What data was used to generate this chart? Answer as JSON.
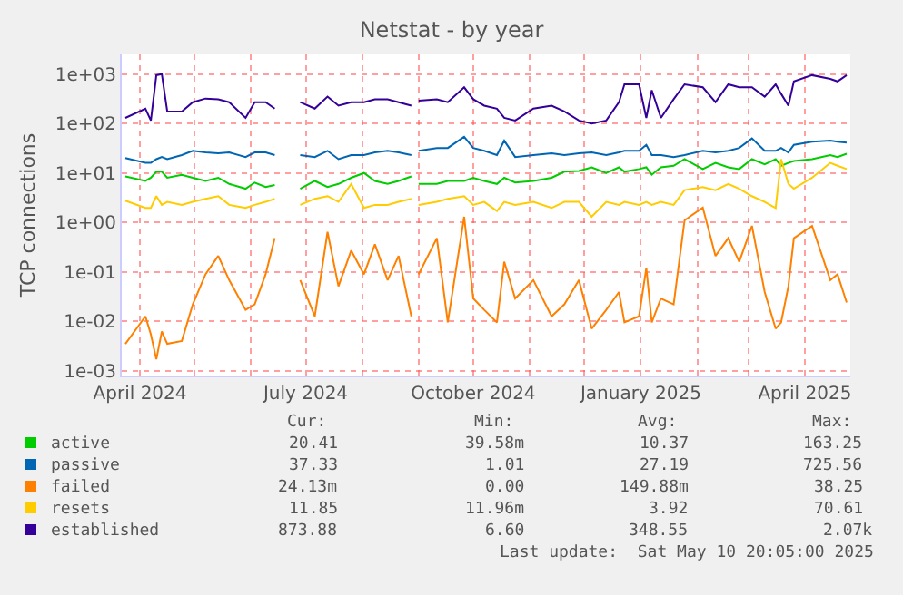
{
  "chart_data": {
    "type": "line",
    "title": "Netstat - by year",
    "ylabel": "TCP connections",
    "x": [
      "2024-03-24",
      "2024-04-04",
      "2024-04-07",
      "2024-04-10",
      "2024-04-13",
      "2024-04-16",
      "2024-04-24",
      "2024-04-30",
      "2024-05-07",
      "2024-05-14",
      "2024-05-20",
      "2024-05-29",
      "2024-06-03",
      "2024-06-09",
      "2024-06-14",
      "2024-06-19",
      "2024-06-28",
      "2024-07-06",
      "2024-07-13",
      "2024-07-19",
      "2024-07-26",
      "2024-08-02",
      "2024-08-08",
      "2024-08-15",
      "2024-08-21",
      "2024-08-28",
      "2024-08-30",
      "2024-09-01",
      "2024-09-11",
      "2024-09-17",
      "2024-09-26",
      "2024-10-01",
      "2024-10-07",
      "2024-10-14",
      "2024-10-18",
      "2024-10-24",
      "2024-11-03",
      "2024-11-13",
      "2024-11-20",
      "2024-11-28",
      "2024-12-05",
      "2024-12-13",
      "2024-12-20",
      "2024-12-23",
      "2024-12-31",
      "2025-01-04",
      "2025-01-07",
      "2025-01-12",
      "2025-01-19",
      "2025-01-25",
      "2025-02-04",
      "2025-02-11",
      "2025-02-18",
      "2025-02-24",
      "2025-03-03",
      "2025-03-10",
      "2025-03-16",
      "2025-03-19",
      "2025-03-23",
      "2025-03-26",
      "2025-04-05",
      "2025-04-15",
      "2025-04-19",
      "2025-04-24"
    ],
    "series": [
      {
        "name": "active",
        "color": "#00cc00",
        "values": [
          8.5,
          6.9,
          8.0,
          10.6,
          10.6,
          8.0,
          9.2,
          8.0,
          6.9,
          8.0,
          6.0,
          4.8,
          6.4,
          5.2,
          5.7,
          null,
          4.8,
          6.9,
          5.2,
          6.0,
          8.0,
          10,
          6.9,
          6.0,
          6.9,
          8.5,
          null,
          6.0,
          6.0,
          6.9,
          6.9,
          8.0,
          6.9,
          6.0,
          8.0,
          6.4,
          6.9,
          8.0,
          10.6,
          11,
          13,
          10,
          13,
          10.6,
          12,
          13,
          9.2,
          13,
          14,
          19,
          12,
          16,
          13,
          12,
          19,
          15,
          19,
          14,
          16,
          17.5,
          19,
          23,
          21,
          24.5
        ]
      },
      {
        "name": "passive",
        "color": "#0066b3",
        "values": [
          20,
          16,
          16,
          19,
          21,
          19,
          23,
          28,
          26,
          25,
          26,
          21,
          26,
          26,
          23,
          null,
          23,
          21,
          28,
          19,
          23,
          23,
          26,
          28,
          26,
          23,
          null,
          28,
          32,
          32,
          54,
          32,
          28,
          23,
          45,
          21,
          23,
          25,
          23,
          25,
          26,
          23,
          26,
          28,
          28,
          37,
          23,
          23,
          21,
          23,
          28,
          26,
          28,
          32,
          50,
          28,
          28,
          32,
          26,
          37,
          43,
          45,
          43,
          41
        ]
      },
      {
        "name": "failed",
        "color": "#ff8000",
        "values": [
          0.0035,
          0.0126,
          0.0054,
          0.0017,
          0.0062,
          0.0035,
          0.004,
          0.022,
          0.089,
          0.21,
          0.068,
          0.017,
          0.022,
          0.089,
          0.48,
          null,
          0.068,
          0.0126,
          0.64,
          0.051,
          0.27,
          0.089,
          0.36,
          0.068,
          0.21,
          0.0126,
          null,
          0.089,
          0.48,
          0.0095,
          1.3,
          0.029,
          0.017,
          0.0095,
          0.16,
          0.029,
          0.068,
          0.0126,
          0.022,
          0.068,
          0.0071,
          0.017,
          0.039,
          0.0095,
          0.0126,
          0.12,
          0.0095,
          0.029,
          0.022,
          1.1,
          2.0,
          0.21,
          0.48,
          0.16,
          0.85,
          0.039,
          0.0071,
          0.0095,
          0.051,
          0.48,
          0.85,
          0.068,
          0.089,
          0.024
        ]
      },
      {
        "name": "resets",
        "color": "#ffcc00",
        "values": [
          2.75,
          1.96,
          1.96,
          3.4,
          2.26,
          2.6,
          2.26,
          2.6,
          3.0,
          3.4,
          2.26,
          1.96,
          2.26,
          2.6,
          3.0,
          null,
          2.26,
          3.0,
          3.4,
          2.6,
          6.0,
          1.96,
          2.26,
          2.26,
          2.6,
          3.0,
          null,
          2.26,
          2.6,
          3.0,
          3.4,
          2.26,
          2.6,
          1.7,
          2.6,
          2.26,
          2.6,
          1.96,
          2.6,
          2.6,
          1.3,
          2.6,
          2.26,
          2.6,
          2.26,
          2.6,
          2.26,
          2.6,
          2.26,
          4.5,
          5.2,
          4.5,
          6.0,
          4.8,
          3.4,
          2.6,
          1.96,
          19,
          6.0,
          4.8,
          8,
          16,
          14,
          12
        ]
      },
      {
        "name": "established",
        "color": "#330099",
        "values": [
          130,
          200,
          115,
          950,
          1000,
          175,
          175,
          270,
          320,
          310,
          270,
          130,
          270,
          270,
          200,
          null,
          270,
          200,
          350,
          230,
          270,
          270,
          310,
          310,
          270,
          230,
          null,
          290,
          310,
          270,
          540,
          310,
          230,
          200,
          130,
          115,
          200,
          230,
          175,
          115,
          100,
          115,
          270,
          620,
          620,
          130,
          470,
          130,
          310,
          620,
          540,
          270,
          620,
          540,
          540,
          350,
          620,
          400,
          230,
          710,
          950,
          800,
          710,
          950
        ]
      }
    ],
    "log": "y",
    "ylim": [
      0.0008,
      2500
    ],
    "yticks": [
      {
        "value": 0.001,
        "label": "1e-03"
      },
      {
        "value": 0.01,
        "label": "1e-02"
      },
      {
        "value": 0.1,
        "label": "1e-01"
      },
      {
        "value": 1,
        "label": "1e+00"
      },
      {
        "value": 10,
        "label": "1e+01"
      },
      {
        "value": 100,
        "label": "1e+02"
      },
      {
        "value": 1000,
        "label": "1e+03"
      }
    ],
    "xlim": [
      "2024-03-22",
      "2025-04-26"
    ],
    "xticks": [
      {
        "value": "2024-04-01",
        "label": "April 2024"
      },
      {
        "value": "2024-05-01",
        "label": null
      },
      {
        "value": "2024-06-01",
        "label": null
      },
      {
        "value": "2024-07-01",
        "label": "July 2024"
      },
      {
        "value": "2024-08-01",
        "label": null
      },
      {
        "value": "2024-09-01",
        "label": null
      },
      {
        "value": "2024-10-01",
        "label": "October 2024"
      },
      {
        "value": "2024-11-01",
        "label": null
      },
      {
        "value": "2024-12-01",
        "label": null
      },
      {
        "value": "2025-01-01",
        "label": "January 2025"
      },
      {
        "value": "2025-02-01",
        "label": null
      },
      {
        "value": "2025-03-01",
        "label": null
      },
      {
        "value": "2025-04-01",
        "label": "April 2025"
      }
    ],
    "grid": true,
    "legend": "bottom",
    "marker": "none",
    "line_style": "solid",
    "annotations": [
      "Cur:",
      "Min:",
      "Avg:",
      "Max:",
      "20.41",
      "39.58m",
      "10.37",
      "163.25",
      "37.33",
      "1.01",
      "27.19",
      "725.56",
      "24.13m",
      "0.00",
      "149.88m",
      "38.25",
      "11.85",
      "11.96m",
      "3.92",
      "70.61",
      "873.88",
      "6.60",
      "348.55",
      "2.07k",
      "Last update:  Sat May 10 20:05:00 2025"
    ]
  }
}
